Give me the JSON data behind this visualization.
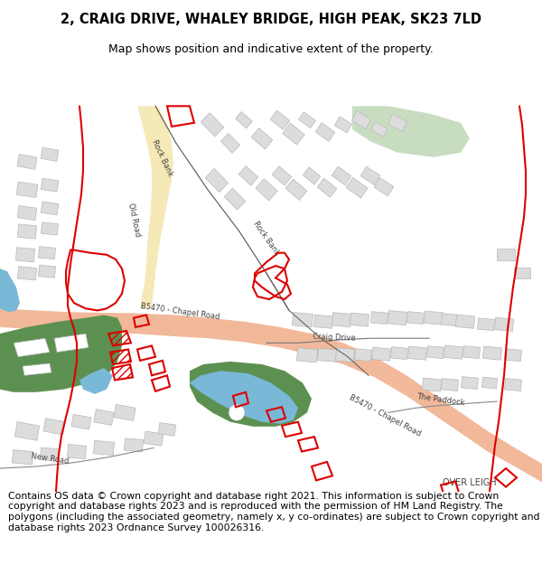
{
  "title_line1": "2, CRAIG DRIVE, WHALEY BRIDGE, HIGH PEAK, SK23 7LD",
  "title_line2": "Map shows position and indicative extent of the property.",
  "footer_text": "Contains OS data © Crown copyright and database right 2021. This information is subject to Crown copyright and database rights 2023 and is reproduced with the permission of HM Land Registry. The polygons (including the associated geometry, namely x, y co-ordinates) are subject to Crown copyright and database rights 2023 Ordnance Survey 100026316.",
  "background_color": "#ffffff",
  "road_salmon": "#f2b89a",
  "road_yellow": "#f5e9b8",
  "green_light": "#c8ddc0",
  "green_dark": "#5c9050",
  "blue_water": "#7ab8d8",
  "building_fill": "#dcdcdc",
  "building_edge": "#b8b8b8",
  "red_outline": "#dd0000",
  "label_color": "#444444",
  "title_fontsize": 10.5,
  "footer_fontsize": 7.8
}
